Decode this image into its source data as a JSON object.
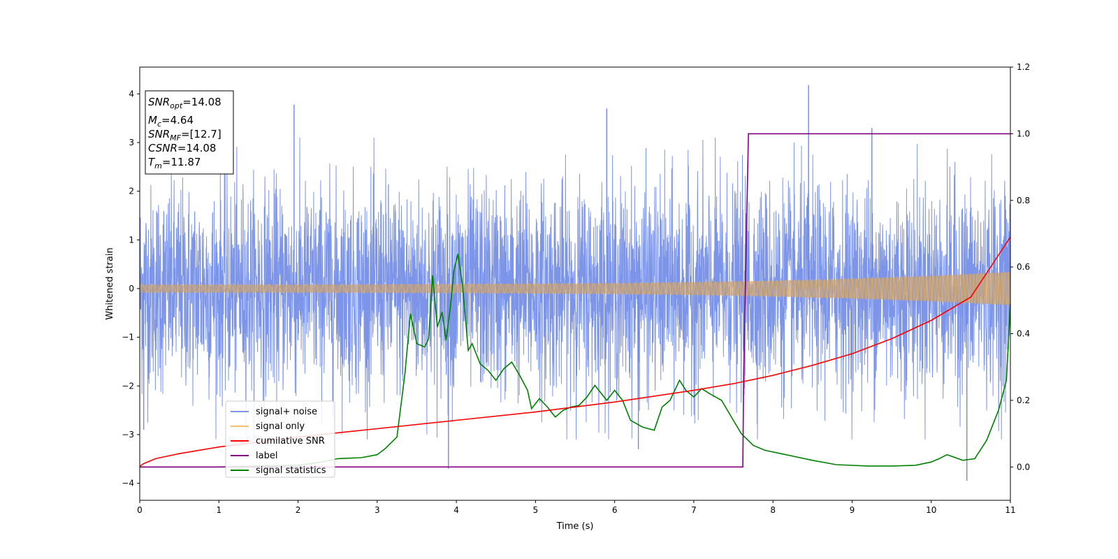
{
  "chart_data": {
    "type": "line",
    "xlabel": "Time (s)",
    "ylabel": "Whitened strain",
    "xlim": [
      0,
      11
    ],
    "ylim_left": [
      -4.35,
      4.55
    ],
    "ylim_right": [
      -0.1,
      1.2
    ],
    "x_ticks": [
      "0",
      "1",
      "2",
      "3",
      "4",
      "5",
      "6",
      "7",
      "8",
      "9",
      "10",
      "11"
    ],
    "y_ticks_left": [
      "−4",
      "−3",
      "−2",
      "−1",
      "0",
      "1",
      "2",
      "3",
      "4"
    ],
    "y_ticks_right": [
      "0.0",
      "0.2",
      "0.4",
      "0.6",
      "0.8",
      "1.0",
      "1.2"
    ],
    "legend_location": "lower-left",
    "legend": [
      {
        "label": "signal+ noise",
        "color": "#7b96e8"
      },
      {
        "label": "signal only",
        "color": "#f5c16c"
      },
      {
        "label": "cumilative SNR",
        "color": "#ff0000"
      },
      {
        "label": "label",
        "color": "#800080"
      },
      {
        "label": "signal statistics",
        "color": "#008000"
      }
    ],
    "annotation": {
      "lines": [
        {
          "base": "SNR",
          "sub": "opt",
          "value": "=14.08"
        },
        {
          "base": "M",
          "sub": "c",
          "value": "=4.64"
        },
        {
          "base": "SNR",
          "sub": "MF",
          "value": "=[12.7]"
        },
        {
          "base": "CSNR",
          "sub": "",
          "value": "=14.08"
        },
        {
          "base": "T",
          "sub": "m",
          "value": "=11.87"
        }
      ]
    },
    "series": [
      {
        "name": "signal+ noise",
        "axis": "left",
        "color": "#6f8ae6",
        "style": "dense noise, roughly ±2.3 core with spikes",
        "approx_range": [
          -3.95,
          4.2
        ],
        "spikes": [
          [
            1.95,
            3.78
          ],
          [
            3.9,
            -3.7
          ],
          [
            5.9,
            3.7
          ],
          [
            8.45,
            4.18
          ],
          [
            9.25,
            3.3
          ],
          [
            10.45,
            -3.95
          ],
          [
            0.05,
            -2.9
          ],
          [
            6.3,
            -3.3
          ]
        ]
      },
      {
        "name": "signal only",
        "axis": "left",
        "color": "#f0c070",
        "style": "chirp envelope",
        "amplitude": [
          [
            0,
            0.08
          ],
          [
            2,
            0.08
          ],
          [
            4,
            0.09
          ],
          [
            6,
            0.11
          ],
          [
            7,
            0.13
          ],
          [
            8,
            0.16
          ],
          [
            9,
            0.2
          ],
          [
            10,
            0.26
          ],
          [
            11,
            0.34
          ]
        ]
      },
      {
        "name": "cumilative SNR",
        "axis": "right",
        "color": "#ff0000",
        "x": [
          0,
          0.05,
          0.2,
          0.5,
          1,
          1.5,
          2,
          3,
          4,
          5,
          6,
          7,
          7.5,
          8,
          8.5,
          9,
          9.5,
          10,
          10.5,
          11
        ],
        "y": [
          0.002,
          0.01,
          0.025,
          0.04,
          0.06,
          0.075,
          0.09,
          0.115,
          0.14,
          0.165,
          0.195,
          0.23,
          0.25,
          0.275,
          0.305,
          0.34,
          0.385,
          0.44,
          0.51,
          0.69
        ]
      },
      {
        "name": "label",
        "axis": "right",
        "color": "#800080",
        "x": [
          0,
          7.62,
          7.63,
          7.69,
          11
        ],
        "y": [
          0,
          0,
          0.28,
          1.0,
          1.0
        ]
      },
      {
        "name": "signal statistics",
        "axis": "right",
        "color": "#008000",
        "x": [
          0,
          1,
          2,
          2.3,
          2.5,
          2.8,
          3.0,
          3.1,
          3.25,
          3.35,
          3.42,
          3.5,
          3.6,
          3.65,
          3.7,
          3.76,
          3.82,
          3.87,
          3.92,
          3.97,
          4.02,
          4.08,
          4.15,
          4.2,
          4.3,
          4.4,
          4.5,
          4.6,
          4.7,
          4.8,
          4.9,
          4.95,
          5.05,
          5.15,
          5.25,
          5.35,
          5.45,
          5.55,
          5.65,
          5.75,
          5.9,
          6.0,
          6.1,
          6.2,
          6.35,
          6.5,
          6.6,
          6.7,
          6.82,
          6.9,
          7.0,
          7.1,
          7.2,
          7.35,
          7.5,
          7.6,
          7.75,
          7.9,
          8.1,
          8.3,
          8.5,
          8.8,
          9.2,
          9.5,
          9.8,
          10.0,
          10.1,
          10.2,
          10.4,
          10.55,
          10.7,
          10.85,
          10.95,
          11.0
        ],
        "y": [
          0.0,
          0.0,
          0.005,
          0.015,
          0.025,
          0.028,
          0.037,
          0.055,
          0.09,
          0.28,
          0.46,
          0.37,
          0.36,
          0.385,
          0.575,
          0.42,
          0.465,
          0.38,
          0.47,
          0.59,
          0.64,
          0.54,
          0.35,
          0.37,
          0.31,
          0.29,
          0.26,
          0.295,
          0.315,
          0.275,
          0.23,
          0.175,
          0.205,
          0.18,
          0.15,
          0.17,
          0.18,
          0.185,
          0.21,
          0.245,
          0.2,
          0.23,
          0.2,
          0.14,
          0.12,
          0.11,
          0.18,
          0.2,
          0.26,
          0.23,
          0.21,
          0.235,
          0.22,
          0.2,
          0.14,
          0.1,
          0.065,
          0.05,
          0.04,
          0.03,
          0.02,
          0.007,
          0.003,
          0.003,
          0.005,
          0.015,
          0.025,
          0.037,
          0.02,
          0.025,
          0.08,
          0.17,
          0.26,
          0.49
        ]
      }
    ]
  }
}
